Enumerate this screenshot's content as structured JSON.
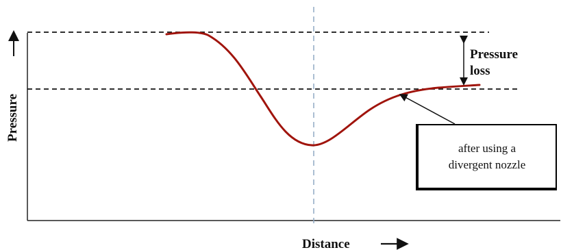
{
  "axes": {
    "ylabel": "Pressure",
    "xlabel": "Distance"
  },
  "annotation": {
    "gap_label_line1": "Pressure",
    "gap_label_line2": "loss"
  },
  "callout": {
    "line1": "after using a",
    "line2": "divergent nozzle"
  },
  "colors": {
    "curve": "#a0140c",
    "axis": "#222222",
    "dashed_line": "#111111",
    "center_line": "#8fa8c4"
  }
}
